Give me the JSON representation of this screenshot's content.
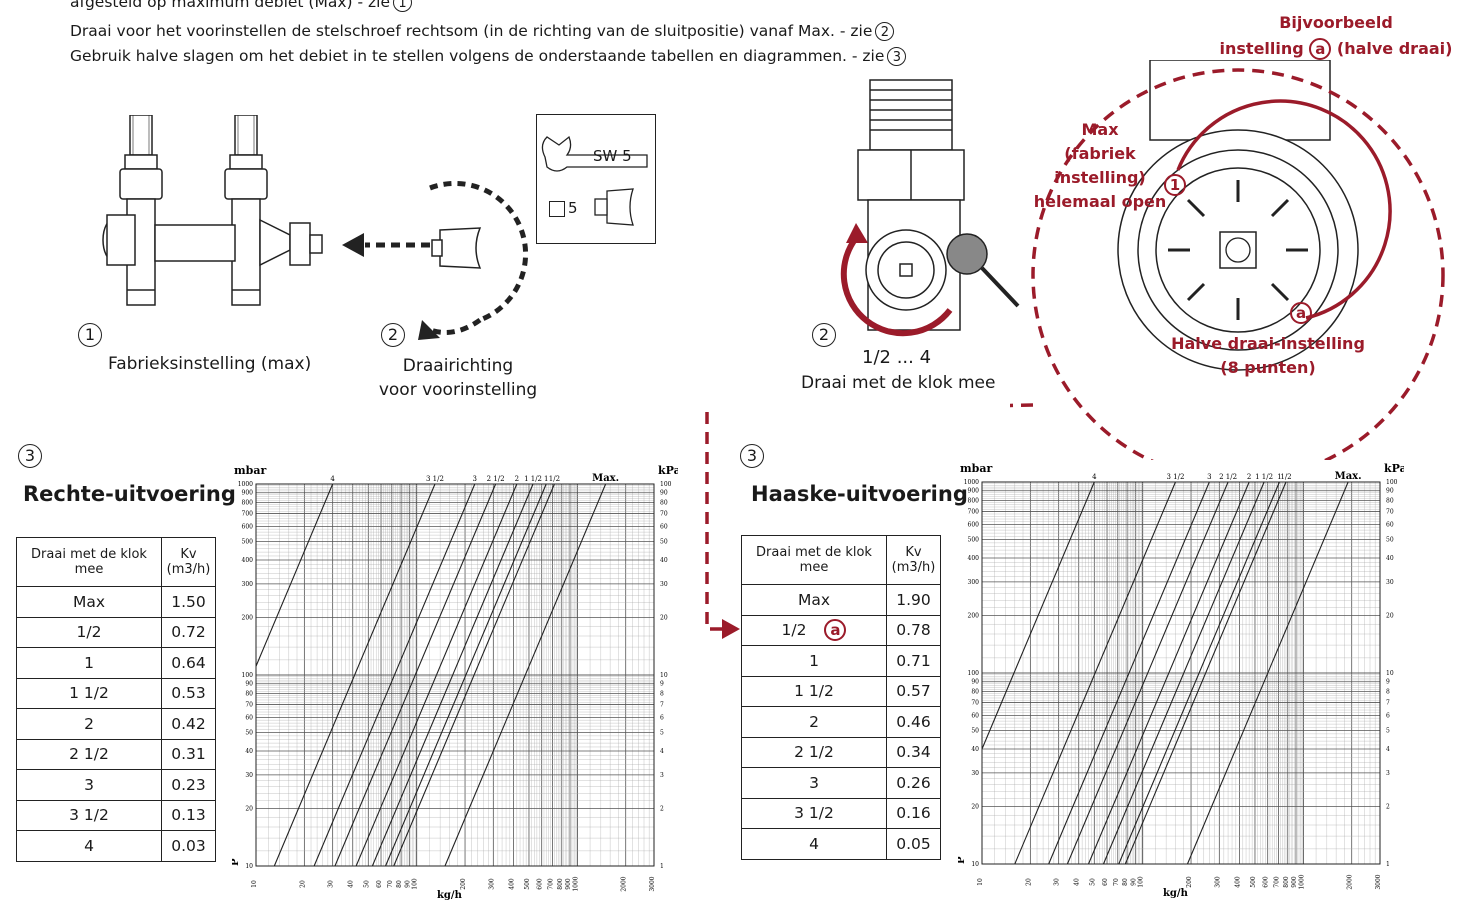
{
  "instructions": {
    "line1": "afgesteld op maximum debiet (Max) - zie",
    "line1_ref": "1",
    "line2": "Draai voor het voorinstellen de stelschroef rechtsom (in de richting van de sluitpositie) vanaf Max. - zie",
    "line2_ref": "2",
    "line3": "Gebruik halve slagen om het debiet in te stellen volgens de onderstaande tabellen en diagrammen. - zie",
    "line3_ref": "3"
  },
  "step1": {
    "number": "1",
    "caption": "Fabrieksinstelling (max)"
  },
  "step2a": {
    "number": "2",
    "caption_line1": "Draairichting",
    "caption_line2": "voor voorinstelling"
  },
  "tool_box": {
    "wrench_label": "SW 5",
    "key_label": "5"
  },
  "step2b": {
    "number": "2",
    "range": "1/2 ... 4",
    "caption": "Draai met de klok mee"
  },
  "callout": {
    "example_line1": "Bijvoorbeeld",
    "example_line2_pre": "instelling",
    "example_marker": "a",
    "example_line2_post": "(halve draai)",
    "max_line1": "Max",
    "max_line2": "(fabriek",
    "max_line3": "instelling)",
    "max_line4": "helemaal open",
    "marker_1": "1",
    "marker_a": "a",
    "half_line1": "Halve draai-instelling",
    "half_line2": "(8 punten)"
  },
  "straight": {
    "number": "3",
    "title": "Rechte-uitvoering",
    "table_header": [
      "Draai met de klok mee",
      "Kv (m3/h)"
    ],
    "rows": [
      [
        "Max",
        "1.50"
      ],
      [
        "1/2",
        "0.72"
      ],
      [
        "1",
        "0.64"
      ],
      [
        "1 1/2",
        "0.53"
      ],
      [
        "2",
        "0.42"
      ],
      [
        "2 1/2",
        "0.31"
      ],
      [
        "3",
        "0.23"
      ],
      [
        "3 1/2",
        "0.13"
      ],
      [
        "4",
        "0.03"
      ]
    ]
  },
  "angle": {
    "number": "3",
    "title": "Haaske-uitvoering",
    "table_header": [
      "Draai met de klok mee",
      "Kv (m3/h)"
    ],
    "rows": [
      [
        "Max",
        "1.90"
      ],
      [
        "1/2",
        "0.78"
      ],
      [
        "1",
        "0.71"
      ],
      [
        "1 1/2",
        "0.57"
      ],
      [
        "2",
        "0.46"
      ],
      [
        "2 1/2",
        "0.34"
      ],
      [
        "3",
        "0.26"
      ],
      [
        "3 1/2",
        "0.16"
      ],
      [
        "4",
        "0.05"
      ]
    ],
    "row_marker": "a"
  },
  "chart_data": [
    {
      "type": "line",
      "xlabel": "kg/h",
      "ylabel_left": "mbar",
      "ylabel_right": "kPa",
      "p_label": "P",
      "x_log": true,
      "y_log": true,
      "xlim": [
        10,
        3000
      ],
      "ylim_mbar": [
        10,
        1000
      ],
      "x_ticks": [
        "10",
        "20",
        "30",
        "40",
        "50",
        "60",
        "70",
        "80",
        "90",
        "100",
        "200",
        "300",
        "400",
        "500",
        "600",
        "700",
        "800",
        "900",
        "1000",
        "2000",
        "3000"
      ],
      "y_ticks_left": [
        "10",
        "20",
        "30",
        "40",
        "50",
        "60",
        "70",
        "80",
        "90",
        "100",
        "200",
        "300",
        "400",
        "500",
        "600",
        "700",
        "800",
        "900",
        "1000"
      ],
      "y_ticks_right": [
        "1",
        "2",
        "3",
        "4",
        "5",
        "6",
        "7",
        "8",
        "9",
        "10",
        "20",
        "30",
        "40",
        "50",
        "60",
        "70",
        "80",
        "90",
        "100"
      ],
      "series": [
        {
          "name": "4",
          "kv": 0.03
        },
        {
          "name": "3 1/2",
          "kv": 0.13
        },
        {
          "name": "3",
          "kv": 0.23
        },
        {
          "name": "2 1/2",
          "kv": 0.31
        },
        {
          "name": "2",
          "kv": 0.42
        },
        {
          "name": "1 1/2",
          "kv": 0.53
        },
        {
          "name": "1",
          "kv": 0.64
        },
        {
          "name": "1/2",
          "kv": 0.72
        },
        {
          "name": "Max.",
          "kv": 1.5
        }
      ]
    },
    {
      "type": "line",
      "xlabel": "kg/h",
      "ylabel_left": "mbar",
      "ylabel_right": "kPa",
      "p_label": "P",
      "x_log": true,
      "y_log": true,
      "xlim": [
        10,
        3000
      ],
      "ylim_mbar": [
        10,
        1000
      ],
      "x_ticks": [
        "10",
        "20",
        "30",
        "40",
        "50",
        "60",
        "70",
        "80",
        "90",
        "100",
        "200",
        "300",
        "400",
        "500",
        "600",
        "700",
        "800",
        "900",
        "1000",
        "2000",
        "3000"
      ],
      "y_ticks_left": [
        "10",
        "20",
        "30",
        "40",
        "50",
        "60",
        "70",
        "80",
        "90",
        "100",
        "200",
        "300",
        "400",
        "500",
        "600",
        "700",
        "800",
        "900",
        "1000"
      ],
      "y_ticks_right": [
        "1",
        "2",
        "3",
        "4",
        "5",
        "6",
        "7",
        "8",
        "9",
        "10",
        "20",
        "30",
        "40",
        "50",
        "60",
        "70",
        "80",
        "90",
        "100"
      ],
      "series": [
        {
          "name": "4",
          "kv": 0.05
        },
        {
          "name": "3 1/2",
          "kv": 0.16
        },
        {
          "name": "3",
          "kv": 0.26
        },
        {
          "name": "2 1/2",
          "kv": 0.34
        },
        {
          "name": "2",
          "kv": 0.46
        },
        {
          "name": "1 1/2",
          "kv": 0.57
        },
        {
          "name": "1",
          "kv": 0.71
        },
        {
          "name": "1/2",
          "kv": 0.78
        },
        {
          "name": "Max.",
          "kv": 1.9
        }
      ]
    }
  ],
  "colors": {
    "accent_red": "#9b1b2a",
    "line": "#222222",
    "grid": "#888888"
  }
}
